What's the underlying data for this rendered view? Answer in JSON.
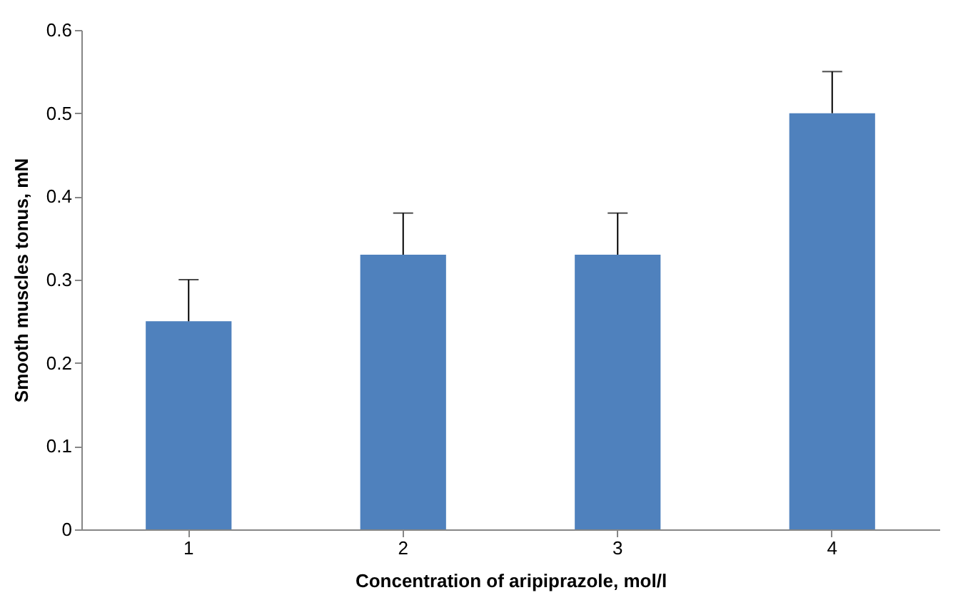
{
  "chart_data": {
    "type": "bar",
    "categories": [
      "1",
      "2",
      "3",
      "4"
    ],
    "values": [
      0.25,
      0.33,
      0.33,
      0.5
    ],
    "color": "#4f81bd",
    "errors": [
      [
        0.25,
        0.3
      ],
      [
        0.33,
        0.38
      ],
      [
        0.33,
        0.38
      ],
      [
        0.5,
        0.55
      ]
    ],
    "xlabel": "Concentration of aripiprazole, mol/l",
    "ylabel": "Smooth muscles tonus, mN",
    "ylim": [
      0,
      0.6
    ],
    "yticks": [
      0,
      0.1,
      0.2,
      0.3,
      0.4,
      0.5,
      0.6
    ],
    "grid": false
  }
}
